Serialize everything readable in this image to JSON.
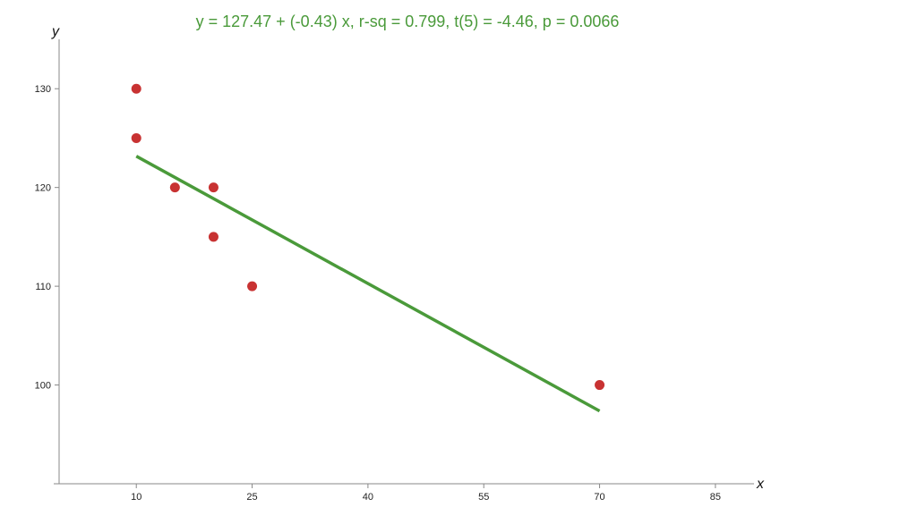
{
  "chart_data": {
    "type": "scatter",
    "title": "y = 127.47 + (-0.43) x, r-sq = 0.799, t(5) = -4.46, p = 0.0066",
    "xlabel": "x",
    "ylabel": "y",
    "xlim": [
      0,
      90
    ],
    "ylim": [
      90,
      135
    ],
    "x_ticks": [
      10,
      25,
      40,
      55,
      70,
      85
    ],
    "y_ticks": [
      100,
      110,
      120,
      130
    ],
    "grid": false,
    "series": [
      {
        "points": [
          {
            "x": 10,
            "y": 130
          },
          {
            "x": 10,
            "y": 125
          },
          {
            "x": 15,
            "y": 120
          },
          {
            "x": 20,
            "y": 120
          },
          {
            "x": 20,
            "y": 115
          },
          {
            "x": 25,
            "y": 110
          },
          {
            "x": 70,
            "y": 100
          }
        ],
        "color": "#c83232"
      }
    ],
    "fit_line": {
      "intercept": 127.47,
      "slope": -0.43,
      "x_range": [
        10,
        70
      ],
      "color": "#4a9a3a"
    }
  }
}
